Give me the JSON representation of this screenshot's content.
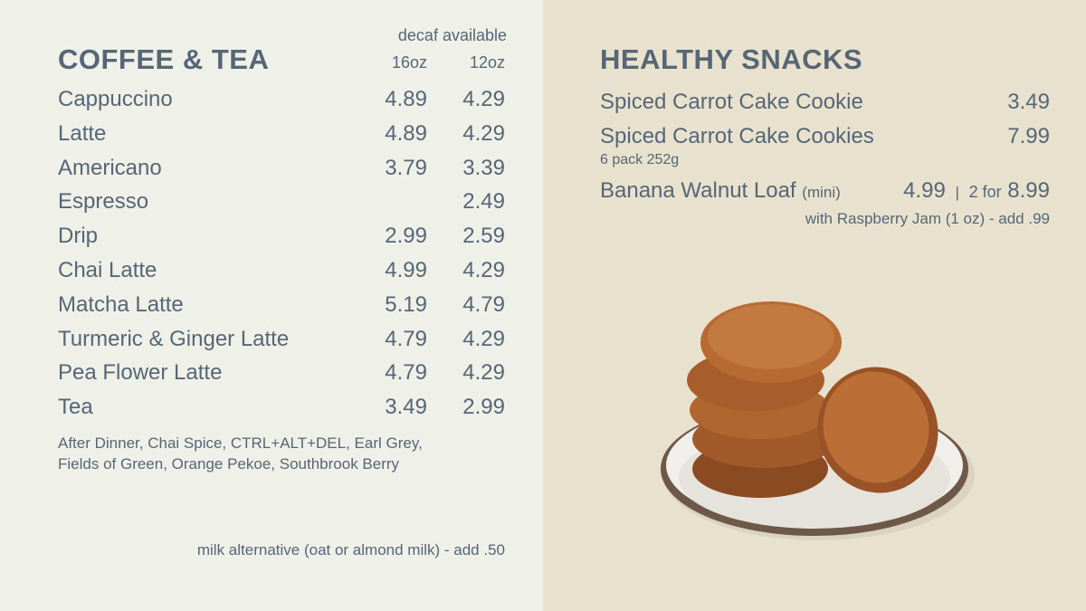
{
  "coffee_tea": {
    "title": "COFFEE & TEA",
    "decaf_note": "decaf available",
    "sizes": [
      "16oz",
      "12oz"
    ],
    "items": [
      {
        "name": "Cappuccino",
        "price_16oz": "4.89",
        "price_12oz": "4.29"
      },
      {
        "name": "Latte",
        "price_16oz": "4.89",
        "price_12oz": "4.29"
      },
      {
        "name": "Americano",
        "price_16oz": "3.79",
        "price_12oz": "3.39"
      },
      {
        "name": "Espresso",
        "price_12oz": "2.49"
      },
      {
        "name": "Drip",
        "price_16oz": "2.99",
        "price_12oz": "2.59"
      },
      {
        "name": "Chai Latte",
        "price_16oz": "4.99",
        "price_12oz": "4.29"
      },
      {
        "name": "Matcha Latte",
        "price_16oz": "5.19",
        "price_12oz": "4.79"
      },
      {
        "name": "Turmeric & Ginger Latte",
        "price_16oz": "4.79",
        "price_12oz": "4.29"
      },
      {
        "name": "Pea Flower Latte",
        "price_16oz": "4.79",
        "price_12oz": "4.29"
      },
      {
        "name": "Tea",
        "price_16oz": "3.49",
        "price_12oz": "2.99"
      }
    ],
    "tea_varieties": [
      "After Dinner, Chai Spice, CTRL+ALT+DEL, Earl Grey,",
      "Fields of Green, Orange Pekoe, Southbrook Berry"
    ],
    "footnote": "milk alternative (oat or almond milk) - add .50"
  },
  "healthy_snacks": {
    "title": "HEALTHY SNACKS",
    "items": [
      {
        "name": "Spiced Carrot Cake Cookie",
        "price": "3.49"
      },
      {
        "name": "Spiced Carrot Cake Cookies",
        "price": "7.99",
        "detail": "6 pack 252g"
      }
    ],
    "loaf": {
      "name": "Banana Walnut Loaf",
      "size": "(mini)",
      "price": "4.99",
      "separator": "|",
      "multi_label": "2 for",
      "multi_price": "8.99",
      "addon": "with Raspberry Jam (1 oz) - add .99"
    }
  }
}
